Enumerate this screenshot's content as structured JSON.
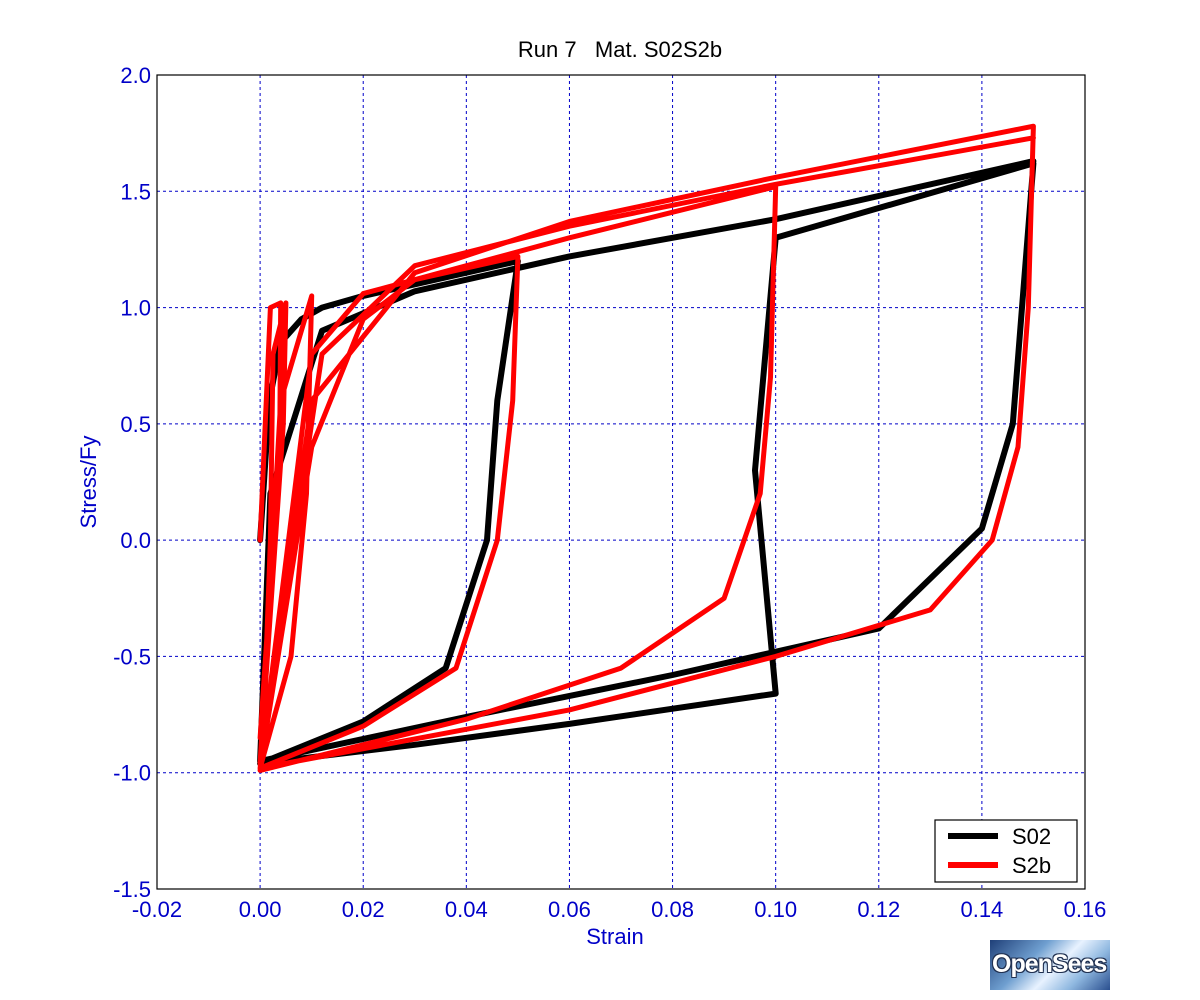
{
  "chart_data": {
    "type": "line",
    "title": "Run 7   Mat. S02S2b",
    "xlabel": "Strain",
    "ylabel": "Stress/Fy",
    "xlim": [
      -0.02,
      0.16
    ],
    "ylim": [
      -1.5,
      2.0
    ],
    "xticks": [
      "-0.02",
      "0.00",
      "0.02",
      "0.04",
      "0.06",
      "0.08",
      "0.10",
      "0.12",
      "0.14",
      "0.16"
    ],
    "yticks": [
      "2.0",
      "1.5",
      "1.0",
      "0.5",
      "0.0",
      "-0.5",
      "-1.0",
      "-1.5"
    ],
    "grid": true,
    "legend_position": "bottom-right",
    "series": [
      {
        "name": "S02",
        "color": "#000000",
        "points": [
          [
            0.0,
            0.0
          ],
          [
            0.0018,
            0.6
          ],
          [
            0.004,
            0.85
          ],
          [
            0.008,
            0.95
          ],
          [
            0.012,
            1.0
          ],
          [
            0.02,
            1.05
          ],
          [
            0.03,
            1.1
          ],
          [
            0.05,
            1.2
          ],
          [
            0.046,
            0.6
          ],
          [
            0.044,
            0.0
          ],
          [
            0.036,
            -0.55
          ],
          [
            0.02,
            -0.78
          ],
          [
            0.0,
            -0.96
          ],
          [
            0.03,
            -0.88
          ],
          [
            0.06,
            -0.79
          ],
          [
            0.1,
            -0.66
          ],
          [
            0.096,
            0.3
          ],
          [
            0.1,
            1.3
          ],
          [
            0.15,
            1.62
          ],
          [
            0.146,
            0.5
          ],
          [
            0.14,
            0.05
          ],
          [
            0.12,
            -0.38
          ],
          [
            0.08,
            -0.58
          ],
          [
            0.04,
            -0.76
          ],
          [
            0.0,
            -0.95
          ],
          [
            0.002,
            0.2
          ],
          [
            0.012,
            0.9
          ],
          [
            0.03,
            1.07
          ],
          [
            0.06,
            1.22
          ],
          [
            0.1,
            1.38
          ],
          [
            0.15,
            1.63
          ]
        ]
      },
      {
        "name": "S2b",
        "color": "#ff0000",
        "points": [
          [
            0.0,
            0.0
          ],
          [
            0.002,
            1.0
          ],
          [
            0.004,
            1.02
          ],
          [
            0.0038,
            0.4
          ],
          [
            0.0,
            -0.85
          ],
          [
            0.001,
            -0.6
          ],
          [
            0.002,
            0.0
          ],
          [
            0.0025,
            0.8
          ],
          [
            0.005,
            1.02
          ],
          [
            0.0045,
            0.5
          ],
          [
            0.0,
            -0.96
          ],
          [
            0.004,
            0.6
          ],
          [
            0.01,
            1.05
          ],
          [
            0.009,
            0.2
          ],
          [
            0.006,
            -0.5
          ],
          [
            0.0,
            -0.98
          ],
          [
            0.01,
            0.8
          ],
          [
            0.02,
            1.06
          ],
          [
            0.03,
            1.12
          ],
          [
            0.05,
            1.22
          ],
          [
            0.049,
            0.6
          ],
          [
            0.046,
            0.0
          ],
          [
            0.038,
            -0.55
          ],
          [
            0.02,
            -0.8
          ],
          [
            0.0,
            -0.98
          ],
          [
            0.01,
            0.4
          ],
          [
            0.02,
            0.95
          ],
          [
            0.03,
            1.12
          ],
          [
            0.06,
            1.3
          ],
          [
            0.1,
            1.52
          ],
          [
            0.099,
            0.7
          ],
          [
            0.097,
            0.2
          ],
          [
            0.09,
            -0.25
          ],
          [
            0.07,
            -0.55
          ],
          [
            0.04,
            -0.77
          ],
          [
            0.0,
            -0.99
          ],
          [
            0.01,
            0.6
          ],
          [
            0.03,
            1.15
          ],
          [
            0.06,
            1.37
          ],
          [
            0.1,
            1.56
          ],
          [
            0.15,
            1.78
          ],
          [
            0.149,
            1.0
          ],
          [
            0.147,
            0.4
          ],
          [
            0.142,
            0.0
          ],
          [
            0.13,
            -0.3
          ],
          [
            0.1,
            -0.5
          ],
          [
            0.06,
            -0.73
          ],
          [
            0.0,
            -0.98
          ],
          [
            0.012,
            0.8
          ],
          [
            0.03,
            1.18
          ],
          [
            0.06,
            1.35
          ],
          [
            0.1,
            1.53
          ],
          [
            0.15,
            1.73
          ]
        ]
      }
    ],
    "logo_text": "OpenSees"
  }
}
